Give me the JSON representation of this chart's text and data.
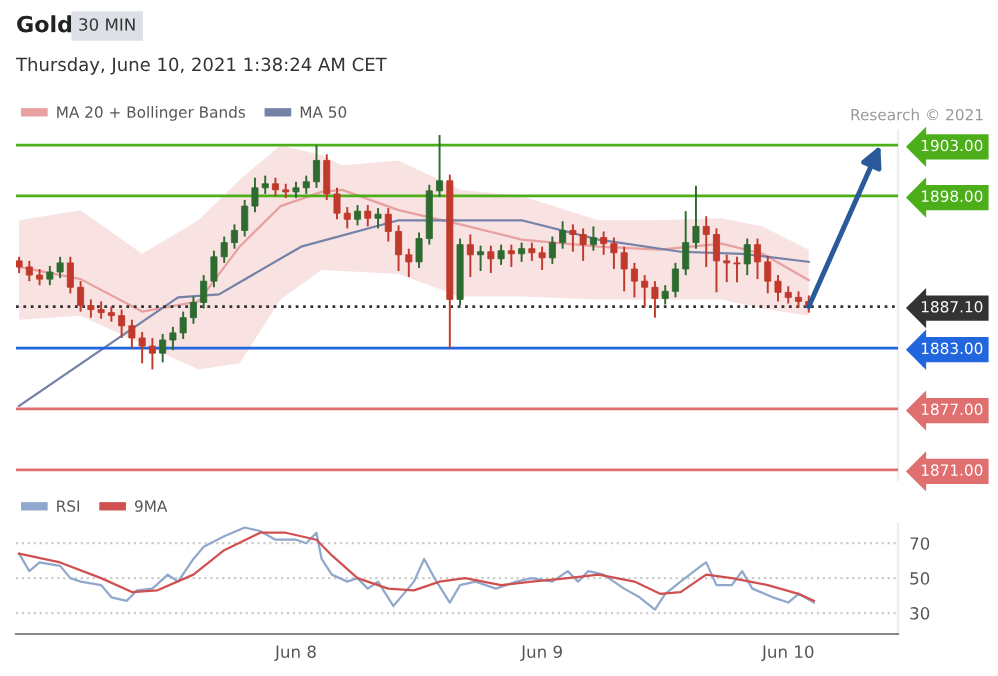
{
  "chart_data": [
    {
      "type": "candlestick",
      "title": "Gold",
      "subtitle": "Thursday, June 10, 2021 1:38:24 AM CET",
      "annotations": [
        "30 MIN",
        "Research © 2021"
      ],
      "x": [
        "2021-06-06T21:00",
        "2021-06-06T22:00",
        "2021-06-06T23:00",
        "2021-06-07T00:00",
        "2021-06-07T01:00",
        "2021-06-07T02:00",
        "2021-06-07T03:00",
        "2021-06-07T04:00",
        "2021-06-07T05:00",
        "2021-06-07T06:00",
        "2021-06-07T07:00",
        "2021-06-07T08:00",
        "2021-06-07T09:00",
        "2021-06-07T10:00",
        "2021-06-07T11:00",
        "2021-06-07T12:00",
        "2021-06-07T13:00",
        "2021-06-07T14:00",
        "2021-06-07T15:00",
        "2021-06-07T16:00",
        "2021-06-07T17:00",
        "2021-06-07T18:00",
        "2021-06-07T19:00",
        "2021-06-07T20:00",
        "2021-06-07T21:00",
        "2021-06-07T22:00",
        "2021-06-07T23:00",
        "2021-06-08T00:00",
        "2021-06-08T01:00",
        "2021-06-08T02:00",
        "2021-06-08T03:00",
        "2021-06-08T04:00",
        "2021-06-08T05:00",
        "2021-06-08T06:00",
        "2021-06-08T07:00",
        "2021-06-08T08:00",
        "2021-06-08T09:00",
        "2021-06-08T10:00",
        "2021-06-08T11:00",
        "2021-06-08T12:00",
        "2021-06-08T13:00",
        "2021-06-08T14:00",
        "2021-06-08T15:00",
        "2021-06-08T16:00",
        "2021-06-08T17:00",
        "2021-06-08T18:00",
        "2021-06-08T19:00",
        "2021-06-08T20:00",
        "2021-06-08T21:00",
        "2021-06-08T22:00",
        "2021-06-08T23:00",
        "2021-06-09T00:00",
        "2021-06-09T01:00",
        "2021-06-09T02:00",
        "2021-06-09T03:00",
        "2021-06-09T04:00",
        "2021-06-09T05:00",
        "2021-06-09T06:00",
        "2021-06-09T07:00",
        "2021-06-09T08:00",
        "2021-06-09T09:00",
        "2021-06-09T10:00",
        "2021-06-09T11:00",
        "2021-06-09T12:00",
        "2021-06-09T13:00",
        "2021-06-09T14:00",
        "2021-06-09T15:00",
        "2021-06-09T16:00",
        "2021-06-09T17:00",
        "2021-06-09T18:00",
        "2021-06-09T19:00",
        "2021-06-09T20:00",
        "2021-06-09T21:00",
        "2021-06-09T22:00",
        "2021-06-09T23:00",
        "2021-06-10T00:00",
        "2021-06-10T01:00",
        "2021-06-10T02:00"
      ],
      "ohlc": [
        [
          1891.6,
          1892.0,
          1890.4,
          1891.0
        ],
        [
          1891.0,
          1891.6,
          1889.6,
          1890.2
        ],
        [
          1890.2,
          1890.8,
          1889.2,
          1889.8
        ],
        [
          1889.8,
          1891.1,
          1889.2,
          1890.5
        ],
        [
          1890.5,
          1892.0,
          1889.9,
          1891.4
        ],
        [
          1891.4,
          1892.0,
          1888.4,
          1889.0
        ],
        [
          1889.0,
          1889.6,
          1886.6,
          1887.2
        ],
        [
          1887.2,
          1887.8,
          1886.0,
          1886.8
        ],
        [
          1886.8,
          1887.6,
          1885.9,
          1886.5
        ],
        [
          1886.5,
          1887.1,
          1885.6,
          1886.2
        ],
        [
          1886.2,
          1886.8,
          1884.0,
          1885.2
        ],
        [
          1885.2,
          1885.8,
          1883.0,
          1884.0
        ],
        [
          1884.0,
          1884.6,
          1881.5,
          1883.2
        ],
        [
          1883.2,
          1884.0,
          1880.9,
          1882.5
        ],
        [
          1882.5,
          1884.4,
          1881.6,
          1883.8
        ],
        [
          1883.8,
          1885.1,
          1882.8,
          1884.5
        ],
        [
          1884.5,
          1886.6,
          1883.9,
          1886.0
        ],
        [
          1886.0,
          1888.1,
          1885.4,
          1887.5
        ],
        [
          1887.5,
          1890.2,
          1886.9,
          1889.6
        ],
        [
          1889.6,
          1892.6,
          1889.0,
          1892.0
        ],
        [
          1892.0,
          1894.0,
          1891.4,
          1893.4
        ],
        [
          1893.4,
          1895.2,
          1892.8,
          1894.6
        ],
        [
          1894.6,
          1897.6,
          1894.0,
          1897.0
        ],
        [
          1897.0,
          1899.8,
          1896.4,
          1898.8
        ],
        [
          1898.8,
          1900.0,
          1898.2,
          1899.2
        ],
        [
          1899.2,
          1899.8,
          1898.0,
          1898.6
        ],
        [
          1898.6,
          1899.2,
          1897.8,
          1898.4
        ],
        [
          1898.4,
          1899.4,
          1897.8,
          1898.8
        ],
        [
          1898.8,
          1900.0,
          1898.2,
          1899.4
        ],
        [
          1899.4,
          1903.0,
          1898.8,
          1901.5
        ],
        [
          1901.5,
          1902.1,
          1897.6,
          1898.2
        ],
        [
          1898.2,
          1898.8,
          1895.7,
          1896.3
        ],
        [
          1896.3,
          1896.9,
          1894.8,
          1895.7
        ],
        [
          1895.7,
          1897.1,
          1895.1,
          1896.5
        ],
        [
          1896.5,
          1897.1,
          1895.0,
          1895.8
        ],
        [
          1895.8,
          1896.8,
          1894.8,
          1896.2
        ],
        [
          1896.2,
          1896.8,
          1893.5,
          1894.5
        ],
        [
          1894.5,
          1895.1,
          1890.6,
          1892.2
        ],
        [
          1892.2,
          1892.8,
          1890.0,
          1891.5
        ],
        [
          1891.5,
          1894.4,
          1890.9,
          1893.8
        ],
        [
          1893.8,
          1899.1,
          1893.2,
          1898.5
        ],
        [
          1898.5,
          1904.0,
          1897.9,
          1899.5
        ],
        [
          1899.5,
          1900.1,
          1883.0,
          1887.8
        ],
        [
          1887.8,
          1893.8,
          1887.2,
          1893.2
        ],
        [
          1893.2,
          1894.2,
          1890.0,
          1892.2
        ],
        [
          1892.2,
          1893.1,
          1890.6,
          1892.5
        ],
        [
          1892.5,
          1893.1,
          1890.4,
          1891.8
        ],
        [
          1891.8,
          1893.2,
          1891.2,
          1892.6
        ],
        [
          1892.6,
          1893.2,
          1891.0,
          1892.3
        ],
        [
          1892.3,
          1893.4,
          1891.5,
          1892.8
        ],
        [
          1892.8,
          1893.4,
          1891.6,
          1892.4
        ],
        [
          1892.4,
          1893.0,
          1890.7,
          1891.9
        ],
        [
          1891.9,
          1894.0,
          1891.3,
          1893.4
        ],
        [
          1893.4,
          1895.5,
          1892.8,
          1894.6
        ],
        [
          1894.6,
          1895.2,
          1892.5,
          1894.2
        ],
        [
          1894.2,
          1894.8,
          1891.6,
          1893.2
        ],
        [
          1893.2,
          1895.0,
          1892.6,
          1893.9
        ],
        [
          1893.9,
          1894.5,
          1892.2,
          1893.3
        ],
        [
          1893.3,
          1893.9,
          1890.8,
          1892.4
        ],
        [
          1892.4,
          1893.0,
          1888.6,
          1890.8
        ],
        [
          1890.8,
          1891.4,
          1888.0,
          1889.6
        ],
        [
          1889.6,
          1890.2,
          1887.0,
          1889.0
        ],
        [
          1889.0,
          1889.6,
          1886.0,
          1887.9
        ],
        [
          1887.9,
          1889.2,
          1887.3,
          1888.6
        ],
        [
          1888.6,
          1891.4,
          1888.0,
          1890.8
        ],
        [
          1890.8,
          1896.5,
          1890.2,
          1893.4
        ],
        [
          1893.4,
          1899.0,
          1892.8,
          1895.0
        ],
        [
          1895.0,
          1896.0,
          1891.0,
          1894.2
        ],
        [
          1894.2,
          1894.8,
          1888.5,
          1891.6
        ],
        [
          1891.6,
          1892.2,
          1889.5,
          1891.4
        ],
        [
          1891.4,
          1892.0,
          1889.5,
          1891.3
        ],
        [
          1891.3,
          1893.8,
          1890.2,
          1893.2
        ],
        [
          1893.2,
          1893.8,
          1889.8,
          1891.5
        ],
        [
          1891.5,
          1892.1,
          1888.4,
          1889.6
        ],
        [
          1889.6,
          1890.2,
          1887.6,
          1888.5
        ],
        [
          1888.5,
          1889.1,
          1887.4,
          1888.0
        ],
        [
          1888.0,
          1888.6,
          1887.0,
          1887.6
        ],
        [
          1887.6,
          1888.2,
          1886.5,
          1887.1
        ]
      ],
      "series": [
        {
          "name": "MA 20 + Bollinger Bands",
          "type": "line",
          "color": "#e8a0a0",
          "x": [
            "2021-06-06T21:00",
            "2021-06-07T03:00",
            "2021-06-07T09:00",
            "2021-06-07T14:30",
            "2021-06-07T18:30",
            "2021-06-07T22:30",
            "2021-06-08T02:30",
            "2021-06-08T04:30",
            "2021-06-08T10:00",
            "2021-06-08T16:00",
            "2021-06-08T22:00",
            "2021-06-09T05:30",
            "2021-06-09T11:30",
            "2021-06-09T17:30",
            "2021-06-09T21:30",
            "2021-06-10T02:00"
          ],
          "values": [
            1891.0,
            1889.8,
            1886.6,
            1887.6,
            1893.0,
            1897.0,
            1898.4,
            1898.6,
            1896.6,
            1895.2,
            1893.7,
            1893.0,
            1892.7,
            1893.3,
            1892.3,
            1889.7
          ],
          "upper": [
            1895.6,
            1896.6,
            1892.3,
            1895.6,
            1899.6,
            1903.0,
            1902.0,
            1901.0,
            1901.5,
            1898.6,
            1898.0,
            1895.6,
            1895.6,
            1895.8,
            1895.0,
            1892.7
          ],
          "lower": [
            1885.8,
            1886.2,
            1883.4,
            1880.9,
            1881.5,
            1887.8,
            1890.7,
            1890.6,
            1890.3,
            1888.1,
            1888.1,
            1887.8,
            1887.8,
            1887.8,
            1886.9,
            1886.2
          ]
        },
        {
          "name": "MA 50",
          "type": "line",
          "color": "#7482a8",
          "x": [
            "2021-06-06T21:00",
            "2021-06-07T12:30",
            "2021-06-07T16:30",
            "2021-06-08T00:30",
            "2021-06-08T10:00",
            "2021-06-08T22:00",
            "2021-06-09T05:30",
            "2021-06-09T13:30",
            "2021-06-09T19:30",
            "2021-06-10T02:00"
          ],
          "values": [
            1877.3,
            1888.0,
            1888.3,
            1893.0,
            1895.6,
            1895.6,
            1893.7,
            1892.5,
            1892.3,
            1891.5
          ]
        }
      ],
      "xlim": [
        "2021-06-06T20:42",
        "2021-06-10T10:42"
      ],
      "ylim": [
        1870,
        1904.5
      ],
      "yticks": [
        {
          "value": 1871,
          "label": "1871.00"
        },
        {
          "value": 1877,
          "label": "1877.00"
        },
        {
          "value": 1883,
          "label": "1883.00"
        },
        {
          "value": 1887.1,
          "label": "1887.10"
        },
        {
          "value": 1898,
          "label": "1898.00"
        },
        {
          "value": 1903,
          "label": "1903.00"
        }
      ],
      "ref_lines": [
        {
          "axis": "y",
          "value": 1903.0,
          "color": "#4caf1a"
        },
        {
          "axis": "y",
          "value": 1898.0,
          "color": "#4caf1a"
        },
        {
          "axis": "y",
          "value": 1887.1,
          "color": "#333333",
          "line_style": "dotted"
        },
        {
          "axis": "y",
          "value": 1883.0,
          "color": "#2266dd"
        },
        {
          "axis": "y",
          "value": 1877.0,
          "color": "#e07070"
        },
        {
          "axis": "y",
          "value": 1871.0,
          "color": "#e07070"
        }
      ],
      "legend": "top left",
      "tick_labels": "y"
    },
    {
      "type": "line",
      "series": [
        {
          "name": "RSI",
          "color": "#8fa8cc",
          "x": [
            "2021-06-06T21:00",
            "2021-06-06T22:00",
            "2021-06-06T23:00",
            "2021-06-07T01:00",
            "2021-06-07T02:00",
            "2021-06-07T03:00",
            "2021-06-07T05:00",
            "2021-06-07T06:00",
            "2021-06-07T07:30",
            "2021-06-07T08:30",
            "2021-06-07T10:00",
            "2021-06-07T11:30",
            "2021-06-07T12:30",
            "2021-06-07T14:00",
            "2021-06-07T15:00",
            "2021-06-07T17:00",
            "2021-06-07T19:00",
            "2021-06-07T20:30",
            "2021-06-07T22:00",
            "2021-06-08T00:00",
            "2021-06-08T01:00",
            "2021-06-08T02:00",
            "2021-06-08T02:30",
            "2021-06-08T03:30",
            "2021-06-08T05:00",
            "2021-06-08T06:00",
            "2021-06-08T07:00",
            "2021-06-08T08:00",
            "2021-06-08T09:30",
            "2021-06-08T10:30",
            "2021-06-08T11:30",
            "2021-06-08T12:30",
            "2021-06-08T13:30",
            "2021-06-08T15:00",
            "2021-06-08T16:00",
            "2021-06-08T17:30",
            "2021-06-08T19:30",
            "2021-06-08T21:30",
            "2021-06-08T23:00",
            "2021-06-09T01:00",
            "2021-06-09T02:30",
            "2021-06-09T03:30",
            "2021-06-09T04:30",
            "2021-06-09T06:00",
            "2021-06-09T08:00",
            "2021-06-09T09:30",
            "2021-06-09T11:00",
            "2021-06-09T12:00",
            "2021-06-09T13:30",
            "2021-06-09T15:30",
            "2021-06-09T16:00",
            "2021-06-09T17:00",
            "2021-06-09T18:30",
            "2021-06-09T19:30",
            "2021-06-09T20:30",
            "2021-06-09T22:30",
            "2021-06-10T00:00",
            "2021-06-10T01:00",
            "2021-06-10T02:30"
          ],
          "values": [
            64,
            54,
            59,
            57,
            50,
            48,
            46,
            39,
            37,
            43,
            44,
            52,
            48,
            61,
            68,
            74,
            79,
            77,
            72,
            72,
            70,
            76,
            61,
            52,
            48,
            50,
            44,
            48,
            34,
            41,
            48,
            61,
            50,
            36,
            46,
            48,
            44,
            48,
            50,
            48,
            54,
            48,
            54,
            52,
            44,
            39,
            32,
            41,
            48,
            57,
            59,
            46,
            46,
            54,
            44,
            39,
            36,
            41,
            36
          ]
        },
        {
          "name": "9MA",
          "color": "#d05050",
          "x": [
            "2021-06-06T21:00",
            "2021-06-07T01:00",
            "2021-06-07T05:00",
            "2021-06-07T08:00",
            "2021-06-07T10:30",
            "2021-06-07T14:00",
            "2021-06-07T17:00",
            "2021-06-07T20:30",
            "2021-06-07T23:00",
            "2021-06-08T02:00",
            "2021-06-08T03:30",
            "2021-06-08T06:00",
            "2021-06-08T09:00",
            "2021-06-08T11:30",
            "2021-06-08T14:00",
            "2021-06-08T16:30",
            "2021-06-08T20:00",
            "2021-06-08T23:00",
            "2021-06-09T02:30",
            "2021-06-09T05:30",
            "2021-06-09T09:00",
            "2021-06-09T11:30",
            "2021-06-09T13:30",
            "2021-06-09T16:00",
            "2021-06-09T18:30",
            "2021-06-09T22:00",
            "2021-06-10T01:00",
            "2021-06-10T02:30"
          ],
          "values": [
            64,
            59,
            50,
            42,
            43,
            52,
            66,
            76,
            76,
            72,
            63,
            50,
            44,
            43,
            48,
            50,
            46,
            48,
            50,
            52,
            48,
            41,
            42,
            52,
            50,
            46,
            41,
            37
          ]
        }
      ],
      "xlim": [
        "2021-06-06T20:42",
        "2021-06-10T10:42"
      ],
      "xticks": [
        {
          "value": "2021-06-08",
          "label": "Jun 8"
        },
        {
          "value": "2021-06-09",
          "label": "Jun 9"
        },
        {
          "value": "2021-06-10",
          "label": "Jun 10"
        }
      ],
      "ylim": [
        18,
        81
      ],
      "yticks": [
        30,
        50,
        70
      ],
      "grid": "y",
      "legend": "top left"
    }
  ]
}
